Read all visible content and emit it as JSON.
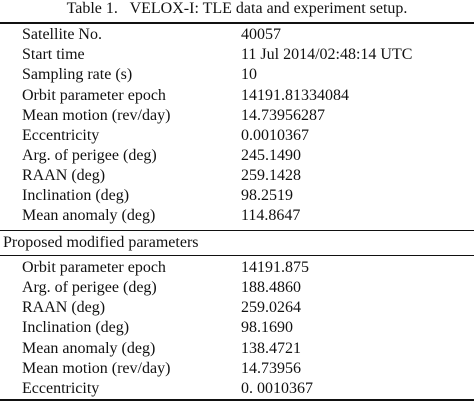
{
  "table": {
    "caption": "Table 1.   VELOX-I: TLE data and experiment setup.",
    "rows": [
      {
        "label": "Satellite No.",
        "value": "40057"
      },
      {
        "label": "Start time",
        "value": "11 Jul 2014/02:48:14 UTC"
      },
      {
        "label": "Sampling rate (s)",
        "value": "10"
      },
      {
        "label": "Orbit parameter epoch",
        "value": "14191.81334084"
      },
      {
        "label": "Mean motion (rev/day)",
        "value": "14.73956287"
      },
      {
        "label": "Eccentricity",
        "value": "0.0010367"
      },
      {
        "label": "Arg. of perigee (deg)",
        "value": "245.1490"
      },
      {
        "label": "RAAN (deg)",
        "value": "259.1428"
      },
      {
        "label": "Inclination (deg)",
        "value": "98.2519"
      },
      {
        "label": "Mean anomaly (deg)",
        "value": "114.8647"
      }
    ],
    "section_heading": "Proposed modified parameters",
    "proposed_rows": [
      {
        "label": "Orbit parameter epoch",
        "value": "14191.875"
      },
      {
        "label": "Arg. of perigee (deg)",
        "value": "188.4860"
      },
      {
        "label": "RAAN (deg)",
        "value": "259.0264"
      },
      {
        "label": "Inclination (deg)",
        "value": "98.1690"
      },
      {
        "label": "Mean anomaly (deg)",
        "value": "138.4721"
      },
      {
        "label": "Mean motion (rev/day)",
        "value": "14.73956"
      },
      {
        "label": "Eccentricity",
        "value": "0. 0010367"
      }
    ]
  }
}
